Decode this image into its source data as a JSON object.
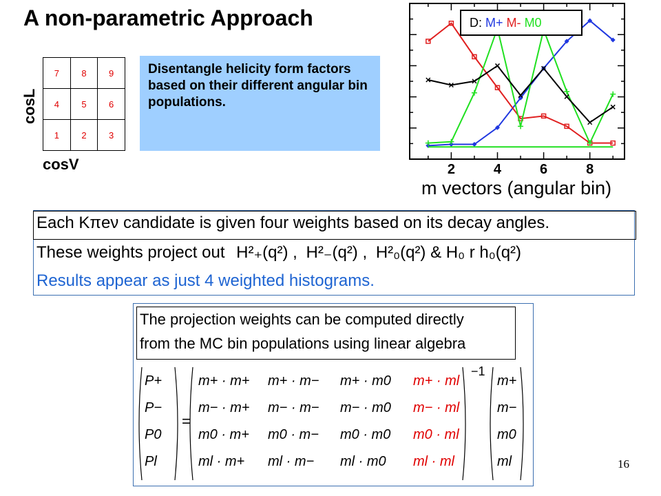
{
  "slide": {
    "title": "A non-parametric Approach",
    "page_number": "16"
  },
  "grid": {
    "rows": [
      [
        "7",
        "8",
        "9"
      ],
      [
        "4",
        "5",
        "6"
      ],
      [
        "1",
        "2",
        "3"
      ]
    ],
    "y_label": "cosL",
    "x_label": "cosV"
  },
  "note": {
    "text": "Disentangle helicity form factors based on their different angular bin populations."
  },
  "plot": {
    "legend_prefix": "D:",
    "legend_items": [
      {
        "label": "M+",
        "color": "#2038e0"
      },
      {
        "label": "M-",
        "color": "#e02020"
      },
      {
        "label": "M0",
        "color": "#20e020"
      }
    ],
    "x_tick_labels": [
      "2",
      "4",
      "6",
      "8"
    ],
    "x_axis_label": "m vectors (angular bin)"
  },
  "chart_data": {
    "type": "line",
    "x": [
      1,
      2,
      3,
      4,
      5,
      6,
      7,
      8,
      9
    ],
    "xlabel": "m vectors (angular bin)",
    "series": [
      {
        "name": "M+",
        "color": "#2038e0",
        "marker": "diamond",
        "values": [
          0.03,
          0.04,
          0.04,
          0.17,
          0.4,
          0.63,
          0.84,
          1.0,
          0.85
        ]
      },
      {
        "name": "M-",
        "color": "#e02020",
        "marker": "square",
        "values": [
          0.84,
          0.98,
          0.72,
          0.48,
          0.24,
          0.26,
          0.18,
          0.05,
          0.05
        ]
      },
      {
        "name": "M0",
        "color": "#20e020",
        "marker": "plus",
        "values": [
          0.05,
          0.06,
          0.44,
          0.94,
          0.18,
          0.93,
          0.45,
          0.05,
          0.43
        ]
      },
      {
        "name": "",
        "color": "#000000",
        "marker": "x",
        "values": [
          0.54,
          0.5,
          0.53,
          0.65,
          0.42,
          0.63,
          0.41,
          0.21,
          0.33
        ]
      },
      {
        "name": "",
        "color": "#20e020",
        "marker": "none",
        "values": [
          0.02,
          0.02,
          0.02,
          0.02,
          0.02,
          0.02,
          0.02,
          0.02,
          0.02
        ]
      }
    ]
  },
  "weights": {
    "line1": "Each Kπeν candidate is given four weights based on its decay angles.",
    "line2_prefix": "These weights project out",
    "line2_terms": [
      "H²₊(q²) ,",
      "H²₋(q²) ,",
      "H²₀(q²) & H₀ r h₀(q²)"
    ],
    "line3": "Results appear as just 4 weighted histograms."
  },
  "projection": {
    "line1": "The projection weights can be computed directly",
    "line2": "from the MC bin populations using linear algebra",
    "lhs": [
      "P+",
      "P−",
      "P0",
      "Pl"
    ],
    "matrix": [
      [
        "m+ · m+",
        "m+ · m−",
        "m+ · m0",
        "m+ · ml"
      ],
      [
        "m− · m+",
        "m− · m−",
        "m− · m0",
        "m− · ml"
      ],
      [
        "m0 · m+",
        "m0 · m−",
        "m0 · m0",
        "m0 · ml"
      ],
      [
        "ml · m+",
        "ml · m−",
        "ml · m0",
        "ml · ml"
      ]
    ],
    "rhs": [
      "m+",
      "m−",
      "m0",
      "ml"
    ],
    "equals": "=",
    "exponent": "−1"
  }
}
